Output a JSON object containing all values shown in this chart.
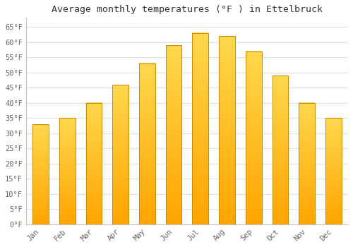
{
  "title": "Average monthly temperatures (°F ) in Ettelbruck",
  "months": [
    "Jan",
    "Feb",
    "Mar",
    "Apr",
    "May",
    "Jun",
    "Jul",
    "Aug",
    "Sep",
    "Oct",
    "Nov",
    "Dec"
  ],
  "values": [
    33,
    35,
    40,
    46,
    53,
    59,
    63,
    62,
    57,
    49,
    40,
    35
  ],
  "bar_color_top": "#FFD84D",
  "bar_color_bottom": "#FFA500",
  "bar_edge_color": "#CC8800",
  "background_color": "#FFFFFF",
  "grid_color": "#E0E0E0",
  "title_fontsize": 9.5,
  "tick_fontsize": 7.5,
  "ylim": [
    0,
    68
  ],
  "yticks": [
    0,
    5,
    10,
    15,
    20,
    25,
    30,
    35,
    40,
    45,
    50,
    55,
    60,
    65
  ],
  "ylabel_suffix": "°F"
}
